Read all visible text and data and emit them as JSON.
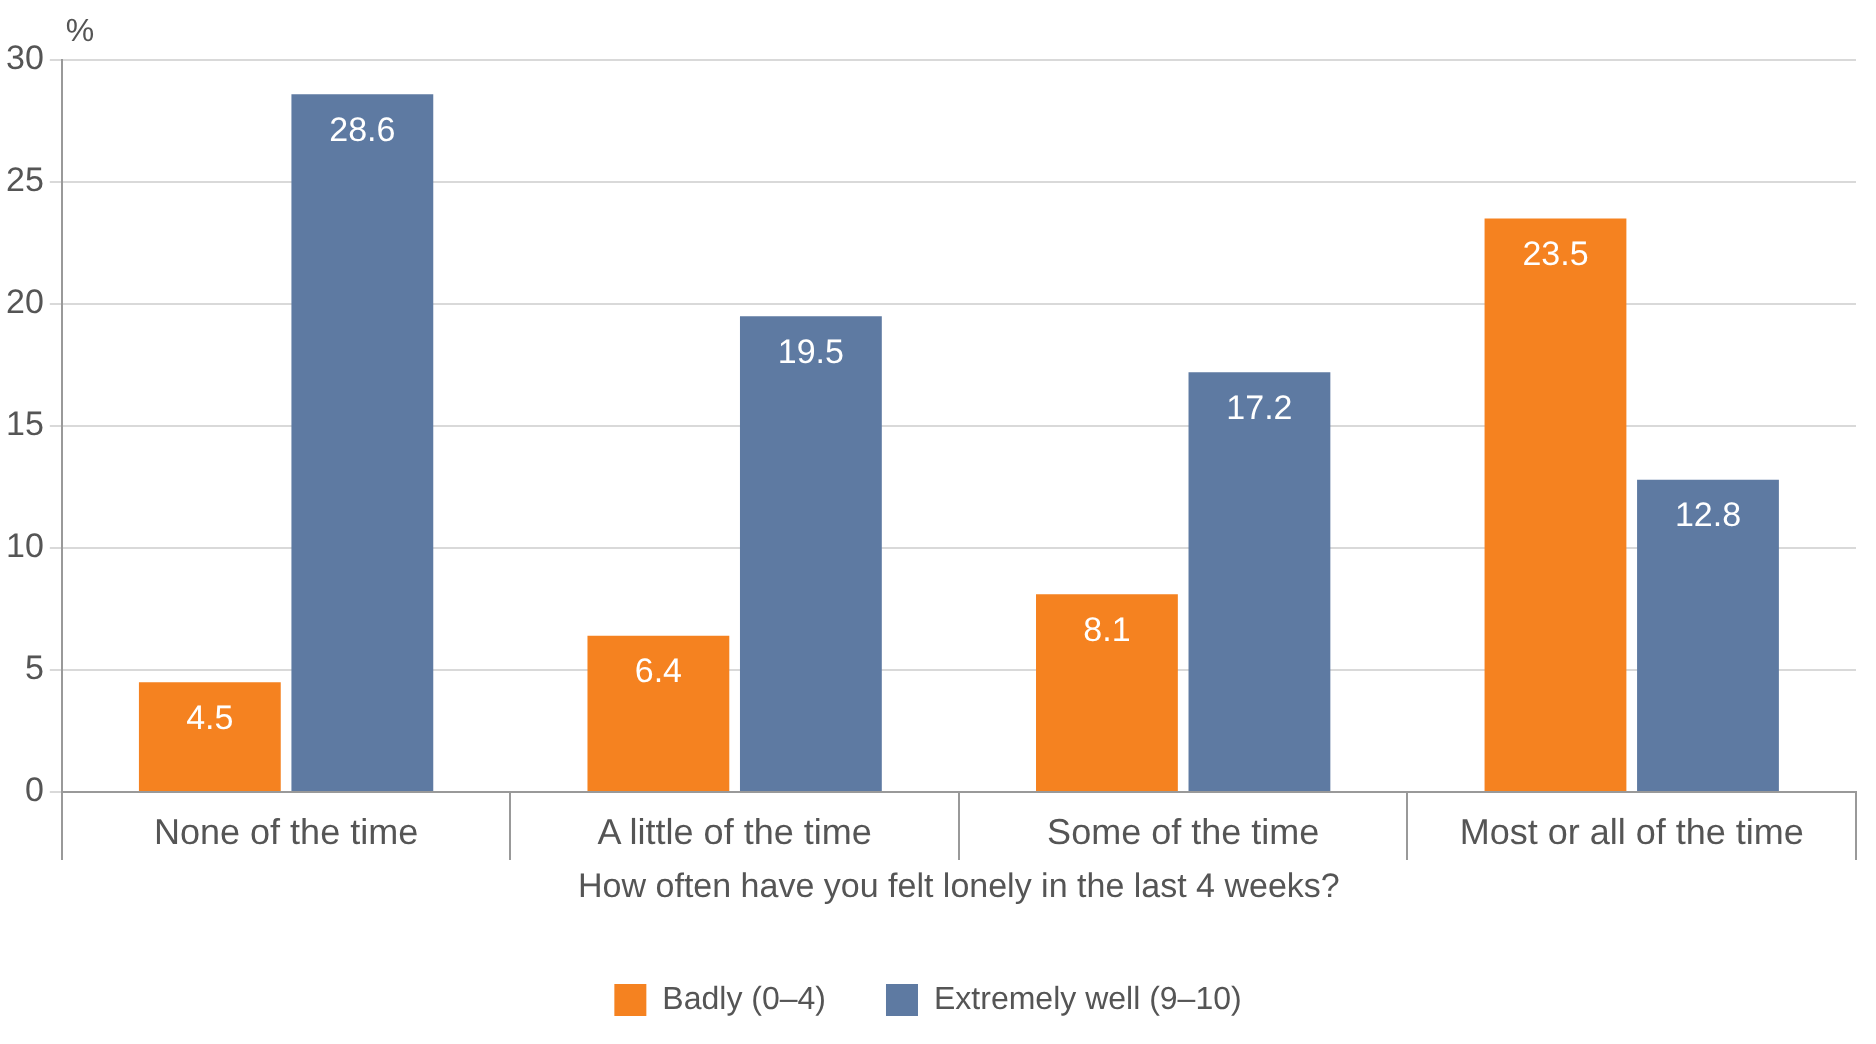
{
  "chart_data": {
    "type": "bar",
    "ylabel": "%",
    "xlabel": "How often have you felt lonely in the last 4 weeks?",
    "categories": [
      "None of the time",
      "A little of the time",
      "Some of the time",
      "Most or all of the time"
    ],
    "series": [
      {
        "name": "Badly (0–4)",
        "color": "#f58220",
        "values": [
          4.5,
          6.4,
          8.1,
          23.5
        ]
      },
      {
        "name": "Extremely well (9–10)",
        "color": "#5e7aa2",
        "values": [
          28.6,
          19.5,
          17.2,
          12.8
        ]
      }
    ],
    "ylim": [
      0,
      30
    ],
    "yticks": [
      0,
      5,
      10,
      15,
      20,
      25,
      30
    ],
    "grid": "y",
    "legend": "bottom",
    "data_labels": true
  }
}
